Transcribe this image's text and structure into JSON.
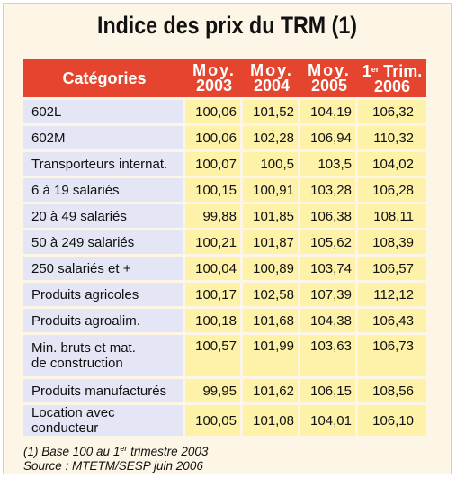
{
  "title": "Indice des prix du TRM (1)",
  "table": {
    "headers": {
      "category": "Catégories",
      "col1_line1": "Moy.",
      "col1_line2": "2003",
      "col2_line1": "Moy.",
      "col2_line2": "2004",
      "col3_line1": "Moy.",
      "col3_line2": "2005",
      "col4_prefix": "1",
      "col4_sup": "er",
      "col4_line1": "Trim.",
      "col4_line2": "2006"
    },
    "rows": [
      {
        "label": "602L",
        "values": [
          "100,06",
          "101,52",
          "104,19",
          "106,32"
        ]
      },
      {
        "label": "602M",
        "values": [
          "100,06",
          "102,28",
          "106,94",
          "110,32"
        ]
      },
      {
        "label": "Transporteurs internat.",
        "values": [
          "100,07",
          "100,5",
          "103,5",
          "104,02"
        ]
      },
      {
        "label": "6 à 19 salariés",
        "values": [
          "100,15",
          "100,91",
          "103,28",
          "106,28"
        ]
      },
      {
        "label": "20 à 49 salariés",
        "values": [
          "99,88",
          "101,85",
          "106,38",
          "108,11"
        ]
      },
      {
        "label": "50 à 249 salariés",
        "values": [
          "100,21",
          "101,87",
          "105,62",
          "108,39"
        ]
      },
      {
        "label": "250 salariés et +",
        "values": [
          "100,04",
          "100,89",
          "103,74",
          "106,57"
        ]
      },
      {
        "label": "Produits agricoles",
        "values": [
          "100,17",
          "102,58",
          "107,39",
          "112,12"
        ]
      },
      {
        "label": "Produits agroalim.",
        "values": [
          "100,18",
          "101,68",
          "104,38",
          "106,43"
        ]
      },
      {
        "label": "Min. bruts et mat.",
        "label2": "de construction",
        "values": [
          "100,57",
          "101,99",
          "103,63",
          "106,73"
        ]
      },
      {
        "label": "Produits manufacturés",
        "values": [
          "99,95",
          "101,62",
          "106,15",
          "108,56"
        ]
      },
      {
        "label": "Location avec conducteur",
        "values": [
          "100,05",
          "101,08",
          "104,01",
          "106,10"
        ]
      }
    ]
  },
  "notes": {
    "note1_prefix": "(1) Base 100 au 1",
    "note1_sup": "er",
    "note1_suffix": " trimestre 2003",
    "source": "Source : MTETM/SESP juin 2006"
  },
  "colors": {
    "header_bg": "#e5452e",
    "label_bg": "#e4e6f5",
    "value_bg": "#fdf2a8",
    "page_bg": "#fdf6e6"
  }
}
